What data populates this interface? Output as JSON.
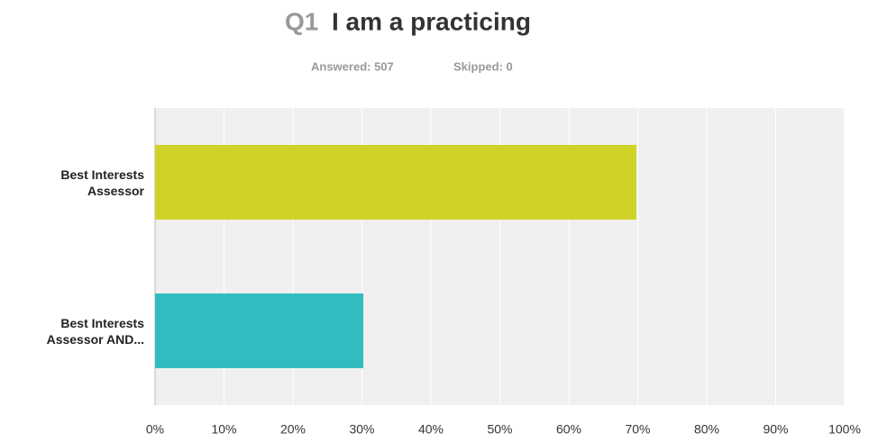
{
  "chart_data": {
    "type": "bar",
    "orientation": "horizontal",
    "title_prefix": "Q1",
    "title": "I am a practicing",
    "answered": "Answered: 507",
    "skipped": "Skipped: 0",
    "categories": [
      "Best Interests Assessor",
      "Best Interests Assessor AND..."
    ],
    "values": [
      69.8,
      30.2
    ],
    "colors": [
      "#cfd327",
      "#31bdbf"
    ],
    "xlim": [
      0,
      100
    ],
    "xticks": [
      {
        "value": 0,
        "label": "0%"
      },
      {
        "value": 10,
        "label": "10%"
      },
      {
        "value": 20,
        "label": "20%"
      },
      {
        "value": 30,
        "label": "30%"
      },
      {
        "value": 40,
        "label": "40%"
      },
      {
        "value": 50,
        "label": "50%"
      },
      {
        "value": 60,
        "label": "60%"
      },
      {
        "value": 70,
        "label": "70%"
      },
      {
        "value": 80,
        "label": "80%"
      },
      {
        "value": 90,
        "label": "90%"
      },
      {
        "value": 100,
        "label": "100%"
      }
    ],
    "grid": true
  }
}
